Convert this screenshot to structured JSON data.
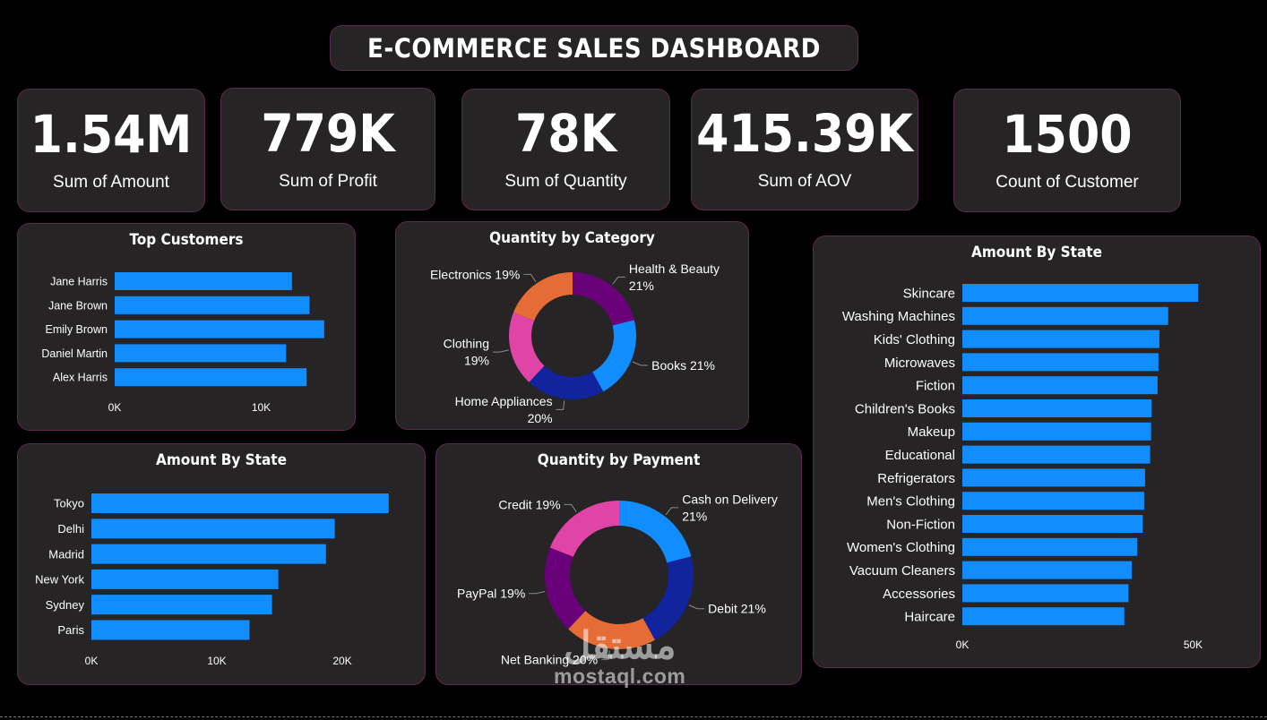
{
  "dashboard_title": "E-COMMERCE SALES DASHBOARD",
  "kpis": [
    {
      "value": "1.54M",
      "label": "Sum of Amount"
    },
    {
      "value": "779K",
      "label": "Sum of Profit"
    },
    {
      "value": "78K",
      "label": "Sum of Quantity"
    },
    {
      "value": "415.39K",
      "label": "Sum of AOV"
    },
    {
      "value": "1500",
      "label": "Count of Customer"
    }
  ],
  "colors": {
    "bar": "#118dff",
    "panel_bg": "#262424",
    "panel_border": "#5e2a4e",
    "category_slices": [
      "#6b007b",
      "#118dff",
      "#12239e",
      "#e044a7",
      "#e66c37"
    ],
    "payment_slices": [
      "#118dff",
      "#12239e",
      "#e66c37",
      "#6b007b",
      "#e044a7"
    ]
  },
  "watermark": {
    "arabic": "مستقل",
    "latin": "mostaql.com"
  },
  "chart_data": [
    {
      "id": "top_customers",
      "type": "bar",
      "orientation": "horizontal",
      "title": "Top Customers",
      "categories": [
        "Jane Harris",
        "Jane Brown",
        "Emily Brown",
        "Daniel Martin",
        "Alex Harris"
      ],
      "values": [
        12100,
        13300,
        14300,
        11700,
        13100
      ],
      "xlim": [
        0,
        20000
      ],
      "ticks": [
        {
          "v": 0,
          "label": "0K"
        },
        {
          "v": 10000,
          "label": "10K"
        }
      ]
    },
    {
      "id": "quantity_by_category",
      "type": "pie",
      "donut": true,
      "title": "Quantity by Category",
      "categories": [
        "Health & Beauty",
        "Books",
        "Home Appliances",
        "Clothing",
        "Electronics"
      ],
      "values": [
        21,
        21,
        20,
        19,
        19
      ],
      "labels": [
        [
          "Health & Beauty",
          "21%"
        ],
        [
          "Books 21%"
        ],
        [
          "Home Appliances",
          "20%"
        ],
        [
          "Clothing",
          "19%"
        ],
        [
          "Electronics 19%"
        ]
      ]
    },
    {
      "id": "amount_by_state_city",
      "type": "bar",
      "orientation": "horizontal",
      "title": "Amount By State",
      "categories": [
        "Tokyo",
        "Delhi",
        "Madrid",
        "New York",
        "Sydney",
        "Paris"
      ],
      "values": [
        23700,
        19400,
        18700,
        14900,
        14400,
        12600
      ],
      "xlim": [
        0,
        25000
      ],
      "ticks": [
        {
          "v": 0,
          "label": "0K"
        },
        {
          "v": 10000,
          "label": "10K"
        },
        {
          "v": 20000,
          "label": "20K"
        }
      ]
    },
    {
      "id": "quantity_by_payment",
      "type": "pie",
      "donut": true,
      "title": "Quantity by Payment",
      "categories": [
        "Cash on Delivery",
        "Debit",
        "Net Banking",
        "PayPal",
        "Credit"
      ],
      "values": [
        21,
        21,
        20,
        19,
        19
      ],
      "labels": [
        [
          "Cash on Delivery",
          "21%"
        ],
        [
          "Debit 21%"
        ],
        [
          "Net Banking 20%"
        ],
        [
          "PayPal 19%"
        ],
        [
          "Credit 19%"
        ]
      ]
    },
    {
      "id": "amount_by_state_product",
      "type": "bar",
      "orientation": "horizontal",
      "title": "Amount By State",
      "categories": [
        "Skincare",
        "Washing Machines",
        "Kids' Clothing",
        "Microwaves",
        "Fiction",
        "Children's Books",
        "Makeup",
        "Educational",
        "Refrigerators",
        "Men's Clothing",
        "Non-Fiction",
        "Women's Clothing",
        "Vacuum Cleaners",
        "Accessories",
        "Haircare"
      ],
      "values": [
        51100,
        44600,
        42700,
        42500,
        42300,
        41000,
        40900,
        40700,
        39600,
        39400,
        39100,
        37900,
        36700,
        36000,
        35100
      ],
      "xlim": [
        0,
        60000
      ],
      "ticks": [
        {
          "v": 0,
          "label": "0K"
        },
        {
          "v": 50000,
          "label": "50K"
        }
      ]
    }
  ]
}
